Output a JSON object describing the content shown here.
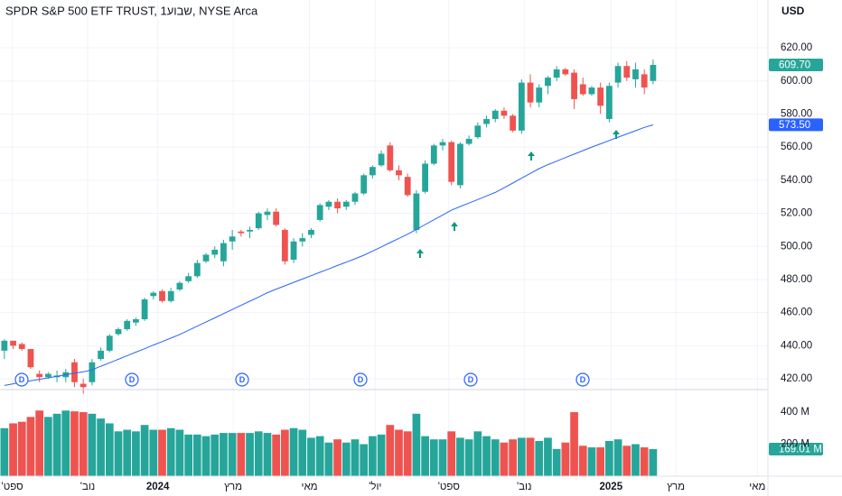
{
  "chart_data": {
    "type": "candlestick",
    "title": "SPDR S&P 500 ETF TRUST, 1שבוע, NYSE Arca",
    "currency": "USD",
    "up_color": "#26a69a",
    "down_color": "#ef5350",
    "grid": true,
    "xlim": [
      -0.5,
      87.1
    ],
    "xticks": [
      {
        "value": 0.9,
        "label": "ספט'"
      },
      {
        "value": 9.5,
        "label": "נוב'"
      },
      {
        "value": 17.5,
        "label": "2024"
      },
      {
        "value": 26.1,
        "label": "מרץ"
      },
      {
        "value": 34.8,
        "label": "מאי"
      },
      {
        "value": 42.3,
        "label": "יול'"
      },
      {
        "value": 50.7,
        "label": "ספט'"
      },
      {
        "value": 59.3,
        "label": "נוב'"
      },
      {
        "value": 69.2,
        "label": "2025"
      },
      {
        "value": 76.6,
        "label": "מרץ"
      },
      {
        "value": 85.9,
        "label": "מאי"
      }
    ],
    "ylim": [
      413.5,
      648.9
    ],
    "yticks": [
      {
        "value": 420,
        "label": "420.00"
      },
      {
        "value": 440,
        "label": "440.00"
      },
      {
        "value": 460,
        "label": "460.00"
      },
      {
        "value": 480,
        "label": "480.00"
      },
      {
        "value": 500,
        "label": "500.00"
      },
      {
        "value": 520,
        "label": "520.00"
      },
      {
        "value": 540,
        "label": "540.00"
      },
      {
        "value": 560,
        "label": "560.00"
      },
      {
        "value": 580,
        "label": "580.00"
      },
      {
        "value": 600,
        "label": "600.00"
      },
      {
        "value": 620,
        "label": "620.00"
      }
    ],
    "open": [
      437,
      443,
      441,
      438,
      423,
      421,
      421,
      421,
      430,
      417,
      418,
      432,
      437,
      447,
      450,
      454,
      456,
      470,
      473,
      467,
      474,
      479,
      482,
      491,
      495,
      491,
      503,
      509,
      509,
      511,
      519,
      521,
      510,
      492,
      503,
      507,
      516,
      524,
      527,
      524,
      527,
      532,
      543,
      549,
      561,
      546,
      542,
      510,
      533,
      550,
      561,
      563,
      537,
      562,
      566,
      574,
      577,
      582,
      579,
      570,
      599,
      587,
      597,
      602,
      607,
      605,
      598,
      592,
      596,
      577,
      599,
      609,
      601,
      604,
      600
    ],
    "high": [
      444,
      443,
      442,
      438,
      425,
      424,
      425,
      426,
      432,
      420,
      432,
      439,
      447,
      451,
      456,
      457,
      469,
      473,
      474,
      475,
      479,
      484,
      492,
      496,
      500,
      504,
      510,
      510,
      512,
      521,
      523,
      523,
      511,
      505,
      508,
      511,
      526,
      528,
      529,
      528,
      533,
      544,
      549,
      558,
      563,
      549,
      544,
      534,
      552,
      562,
      565,
      564,
      563,
      567,
      575,
      579,
      583,
      584,
      580,
      601,
      604,
      598,
      603,
      609,
      608,
      607,
      602,
      597,
      599,
      599,
      611,
      612,
      611,
      607,
      613
    ],
    "low": [
      432,
      438,
      437,
      426,
      418,
      420,
      418,
      418,
      415,
      411,
      416,
      431,
      436,
      446,
      449,
      452,
      455,
      468,
      466,
      466,
      473,
      478,
      481,
      490,
      493,
      488,
      498,
      506,
      505,
      510,
      516,
      512,
      489,
      490,
      500,
      505,
      515,
      522,
      520,
      522,
      525,
      531,
      541,
      548,
      545,
      540,
      530,
      508,
      532,
      549,
      558,
      537,
      535,
      561,
      565,
      572,
      575,
      577,
      569,
      568,
      584,
      584,
      592,
      600,
      603,
      583,
      591,
      591,
      580,
      575,
      596,
      600,
      596,
      592,
      598
    ],
    "close": [
      443,
      440,
      438,
      427,
      421,
      423,
      422,
      424,
      418,
      415,
      430,
      437,
      446,
      450,
      455,
      456,
      468,
      472,
      467,
      473,
      478,
      482,
      490,
      495,
      498,
      502,
      506,
      508,
      510,
      520,
      521,
      513,
      491,
      503,
      505,
      510,
      525,
      527,
      523,
      527,
      532,
      543,
      548,
      556,
      546,
      543,
      531,
      532,
      550,
      561,
      563,
      539,
      562,
      565,
      573,
      577,
      582,
      579,
      570,
      599,
      587,
      596,
      602,
      607,
      604,
      589,
      592,
      596,
      585,
      597,
      609,
      602,
      607,
      596,
      609.7
    ],
    "ma": {
      "color": "#2962ff",
      "values": [
        416.0,
        417.0,
        417.9,
        418.8,
        419.7,
        420.6,
        421.5,
        422.5,
        423.4,
        424.3,
        425.4,
        427.6,
        429.7,
        431.8,
        434.0,
        436.1,
        438.2,
        440.4,
        442.5,
        444.6,
        446.8,
        449.3,
        451.8,
        454.3,
        456.8,
        459.4,
        461.9,
        464.4,
        466.9,
        469.4,
        472.0,
        474.2,
        476.2,
        478.3,
        480.3,
        482.3,
        484.4,
        486.4,
        488.5,
        490.5,
        492.5,
        494.7,
        497.2,
        499.7,
        502.3,
        504.8,
        507.4,
        510.3,
        513.2,
        516.1,
        519.0,
        521.9,
        524.1,
        526.2,
        528.3,
        530.5,
        532.6,
        535.4,
        538.3,
        541.2,
        544.1,
        547.0,
        549.4,
        551.5,
        553.7,
        555.8,
        557.9,
        560.0,
        562.0,
        564.0,
        566.0,
        568.0,
        569.9,
        571.9,
        573.5
      ]
    },
    "volume": {
      "values": [
        300,
        330,
        340,
        370,
        410,
        370,
        390,
        410,
        405,
        400,
        390,
        360,
        330,
        280,
        290,
        280,
        320,
        290,
        290,
        300,
        290,
        260,
        260,
        250,
        260,
        270,
        270,
        270,
        270,
        280,
        270,
        260,
        290,
        300,
        290,
        240,
        250,
        210,
        230,
        210,
        230,
        200,
        250,
        260,
        320,
        290,
        280,
        390,
        250,
        230,
        230,
        280,
        240,
        230,
        280,
        250,
        230,
        210,
        230,
        240,
        240,
        220,
        240,
        170,
        210,
        400,
        190,
        180,
        180,
        220,
        230,
        190,
        200,
        180,
        169.01
      ],
      "ylim": [
        0,
        541
      ],
      "yticks": [
        {
          "value": 200,
          "label": "200 M"
        },
        {
          "value": 400,
          "label": "400 M"
        }
      ]
    },
    "price_tags": [
      {
        "value": 609.7,
        "label": "609.70",
        "color": "#26a69a"
      },
      {
        "value": 573.5,
        "label": "573.50",
        "color": "#2962ff"
      }
    ],
    "volume_tag": {
      "value": 169.01,
      "label": "169.01 M",
      "color": "#26a69a"
    },
    "dividend_marker": "D"
  }
}
